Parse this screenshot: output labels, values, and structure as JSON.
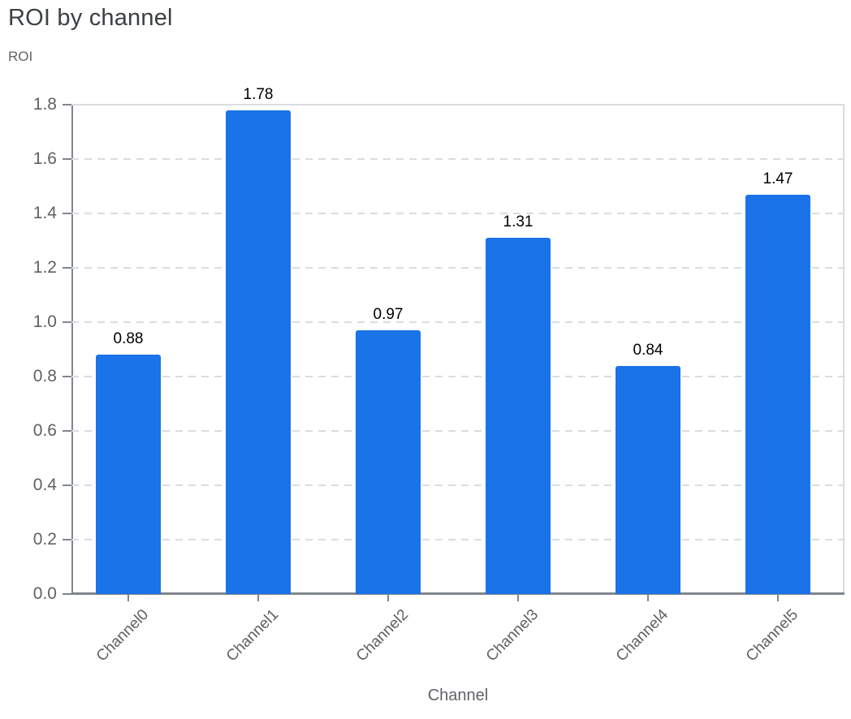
{
  "chart_data": {
    "type": "bar",
    "title": "ROI by channel",
    "ylabel": "ROI",
    "xlabel": "Channel",
    "categories": [
      "Channel0",
      "Channel1",
      "Channel2",
      "Channel3",
      "Channel4",
      "Channel5"
    ],
    "values": [
      0.88,
      1.78,
      0.97,
      1.31,
      0.84,
      1.47
    ],
    "value_labels": [
      "0.88",
      "1.78",
      "0.97",
      "1.31",
      "0.84",
      "1.47"
    ],
    "ylim": [
      0,
      1.8
    ],
    "ytick_step": 0.2,
    "ytick_labels": [
      "0.0",
      "0.2",
      "0.4",
      "0.6",
      "0.8",
      "1.0",
      "1.2",
      "1.4",
      "1.6",
      "1.8"
    ],
    "grid": "horizontal-dashed, top-line-solid",
    "legend": "none",
    "colors": {
      "bar": "#1a73e8",
      "grid": "#dadce0",
      "axis": "#80868b",
      "title_text": "#3c4043",
      "subtle_text": "#5f6368",
      "tick_label_text": "#616161",
      "value_label_text": "#000000",
      "background": "#ffffff"
    }
  }
}
